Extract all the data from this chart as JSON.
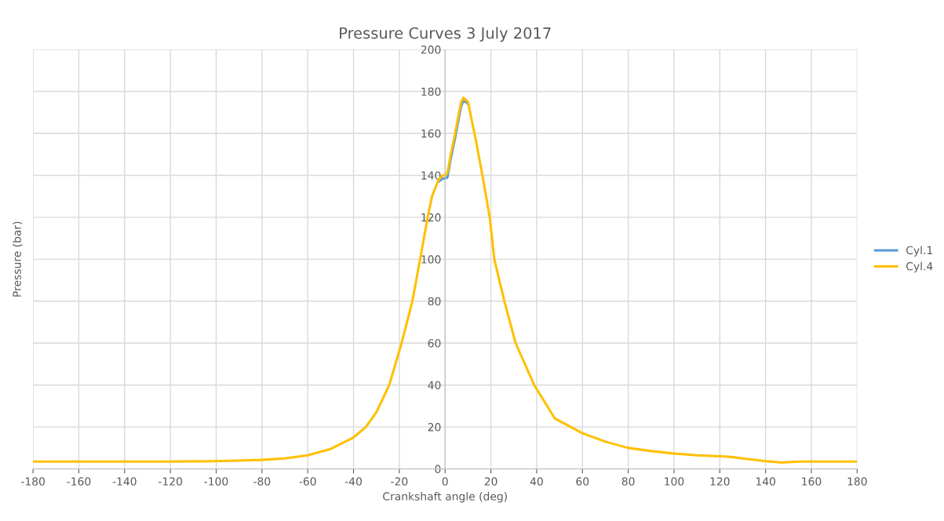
{
  "chart_data": {
    "type": "line",
    "title": "Pressure Curves 3 July 2017",
    "xlabel": "Crankshaft angle (deg)",
    "ylabel": "Pressure (bar)",
    "xlim": [
      -180,
      180
    ],
    "ylim": [
      0,
      200
    ],
    "xticks": [
      -180,
      -160,
      -140,
      -120,
      -100,
      -80,
      -60,
      -40,
      -20,
      0,
      20,
      40,
      60,
      80,
      100,
      120,
      140,
      160,
      180
    ],
    "yticks": [
      0,
      20,
      40,
      60,
      80,
      100,
      120,
      140,
      160,
      180,
      200
    ],
    "grid": true,
    "legend": "right",
    "marker": "none",
    "line_style": "solid",
    "series": [
      {
        "name": "Cyl.1",
        "color": "#5b9bd5",
        "x": [
          -2.8,
          -1,
          0,
          1,
          2.5,
          4.4,
          6.1,
          7,
          8,
          9,
          10
        ],
        "values": [
          137,
          138.5,
          138.5,
          139,
          148,
          158,
          168,
          173,
          175.5,
          175,
          174
        ]
      },
      {
        "name": "Cyl.4",
        "color": "#ffc000",
        "x": [
          -180,
          -160,
          -140,
          -120,
          -100,
          -80,
          -70,
          -60,
          -50,
          -40,
          -34.6,
          -30,
          -24.4,
          -19,
          -14.3,
          -10.9,
          -7.6,
          -5.7,
          -2.8,
          -1,
          0,
          1,
          2.5,
          4.4,
          6.1,
          7,
          8,
          9,
          10,
          11.5,
          13.4,
          16.3,
          19.5,
          21.5,
          25.9,
          30.8,
          38.9,
          48,
          60,
          70,
          80,
          90,
          100,
          110,
          120,
          125,
          130,
          140,
          147,
          155,
          160,
          180
        ],
        "values": [
          3.5,
          3.5,
          3.5,
          3.5,
          3.7,
          4.3,
          5,
          6.5,
          9.5,
          15,
          20,
          27,
          40,
          60,
          80,
          100,
          120,
          130,
          138,
          140,
          140,
          141,
          150,
          160,
          170,
          175,
          177,
          176,
          175,
          167,
          157,
          140,
          120,
          100,
          80,
          60,
          40,
          24,
          17,
          13,
          10,
          8.5,
          7.3,
          6.5,
          6,
          5.7,
          5,
          3.7,
          3,
          3.5,
          3.5,
          3.5
        ]
      }
    ]
  }
}
